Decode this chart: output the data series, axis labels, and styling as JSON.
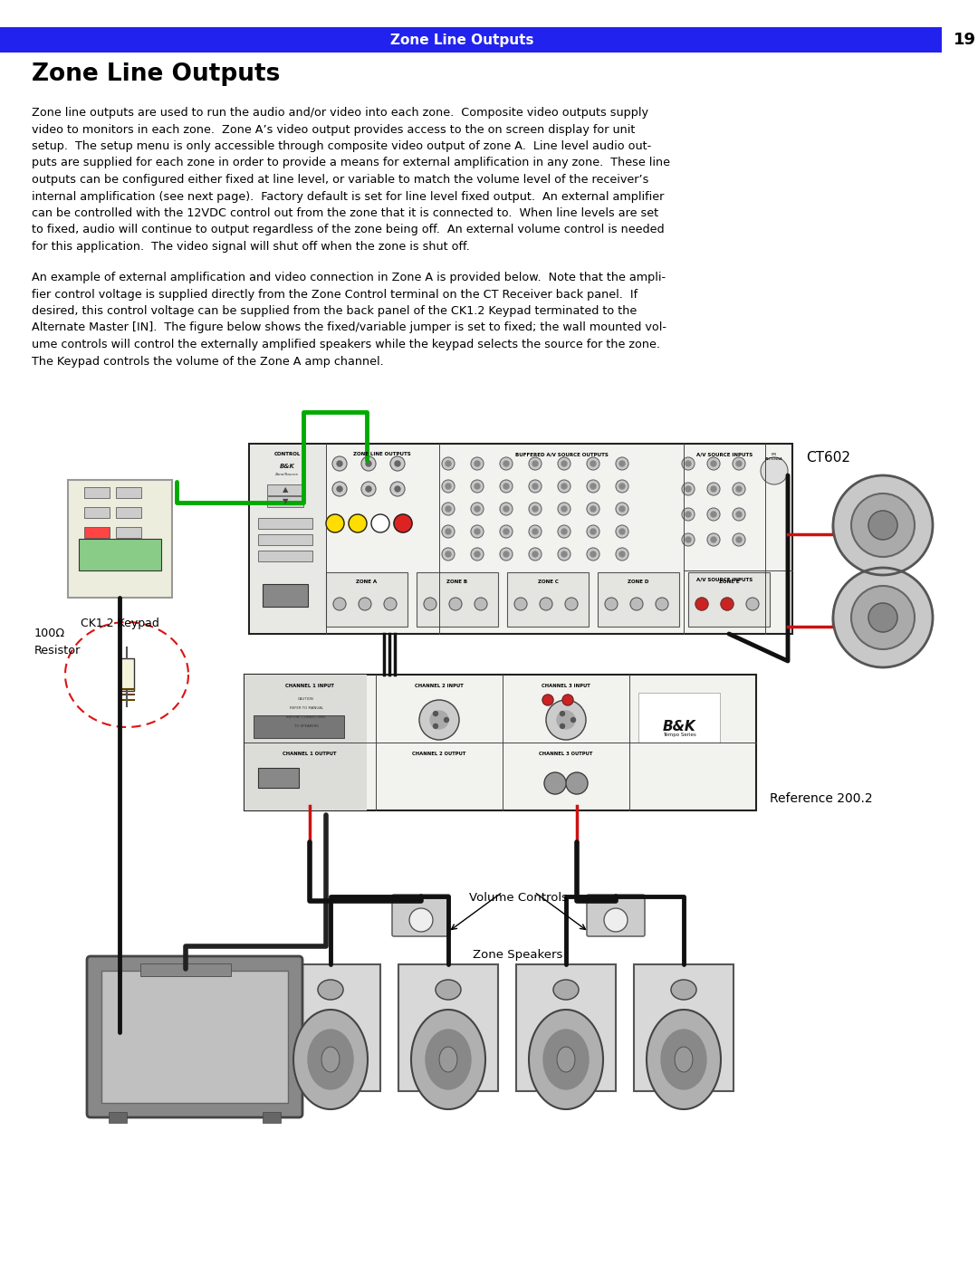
{
  "page_number": "19",
  "header_text": "Zone Line Outputs",
  "header_bg_color": "#2222EE",
  "header_text_color": "#FFFFFF",
  "title": "Zone Line Outputs",
  "body1_lines": [
    "Zone line outputs are used to run the audio and/or video into each zone.  Composite video outputs supply",
    "video to monitors in each zone.  Zone A’s video output provides access to the on screen display for unit",
    "setup.  The setup menu is only accessible through composite video output of zone A.  Line level audio out-",
    "puts are supplied for each zone in order to provide a means for external amplification in any zone.  These line",
    "outputs can be configured either fixed at line level, or variable to match the volume level of the receiver’s",
    "internal amplification (see next page).  Factory default is set for line level fixed output.  An external amplifier",
    "can be controlled with the 12VDC control out from the zone that it is connected to.  When line levels are set",
    "to fixed, audio will continue to output regardless of the zone being off.  An external volume control is needed",
    "for this application.  The video signal will shut off when the zone is shut off."
  ],
  "body2_lines": [
    "An example of external amplification and video connection in Zone A is provided below.  Note that the ampli-",
    "fier control voltage is supplied directly from the Zone Control terminal on the CT Receiver back panel.  If",
    "desired, this control voltage can be supplied from the back panel of the CK1.2 Keypad terminated to the",
    "Alternate Master [IN].  The figure below shows the fixed/variable jumper is set to fixed; the wall mounted vol-",
    "ume controls will control the externally amplified speakers while the keypad selects the source for the zone.",
    "The Keypad controls the volume of the Zone A amp channel."
  ],
  "bg_color": "#FFFFFF",
  "text_color": "#000000"
}
